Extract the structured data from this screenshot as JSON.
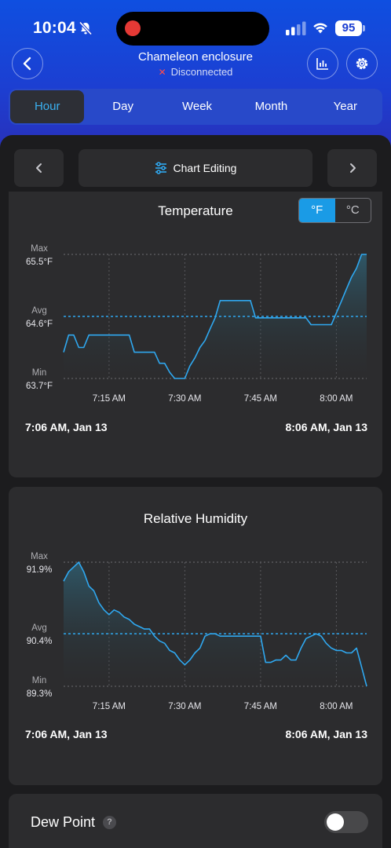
{
  "status_bar": {
    "time": "10:04",
    "battery": "95"
  },
  "header": {
    "title": "Chameleon enclosure",
    "status": "Disconnected"
  },
  "tabs": [
    {
      "label": "Hour",
      "active": true
    },
    {
      "label": "Day",
      "active": false
    },
    {
      "label": "Week",
      "active": false
    },
    {
      "label": "Month",
      "active": false
    },
    {
      "label": "Year",
      "active": false
    }
  ],
  "nav": {
    "editing_label": "Chart Editing"
  },
  "units": {
    "fahrenheit": "°F",
    "celsius": "°C",
    "selected": "°F"
  },
  "colors": {
    "accent": "#1a9be6",
    "line": "#2fa8f0",
    "hero": "#1c3fd2",
    "error": "#ff4d4d"
  },
  "chart_data": [
    {
      "type": "line",
      "title": "Temperature",
      "ylim": [
        63.7,
        65.5
      ],
      "y_labels": [
        {
          "name": "Max",
          "value": "65.5°F",
          "y": 65.5
        },
        {
          "name": "Avg",
          "value": "64.6°F",
          "y": 64.6
        },
        {
          "name": "Min",
          "value": "63.7°F",
          "y": 63.7
        }
      ],
      "x_ticks": [
        "7:15 AM",
        "7:30 AM",
        "7:45 AM",
        "8:00 AM"
      ],
      "x_tick_minutes": [
        9,
        24,
        39,
        54
      ],
      "x_range_minutes": [
        0,
        60
      ],
      "range_start": "7:06 AM,  Jan 13",
      "range_end": "8:06 AM,  Jan 13",
      "points": [
        [
          0,
          64.08
        ],
        [
          1,
          64.33
        ],
        [
          2,
          64.33
        ],
        [
          3,
          64.15
        ],
        [
          4,
          64.15
        ],
        [
          5,
          64.33
        ],
        [
          6,
          64.33
        ],
        [
          7,
          64.33
        ],
        [
          8,
          64.33
        ],
        [
          9,
          64.33
        ],
        [
          10,
          64.33
        ],
        [
          11,
          64.33
        ],
        [
          12,
          64.33
        ],
        [
          13,
          64.33
        ],
        [
          14,
          64.08
        ],
        [
          15,
          64.08
        ],
        [
          16,
          64.08
        ],
        [
          17,
          64.08
        ],
        [
          18,
          64.08
        ],
        [
          19,
          63.92
        ],
        [
          20,
          63.92
        ],
        [
          21,
          63.79
        ],
        [
          22,
          63.7
        ],
        [
          23,
          63.7
        ],
        [
          24,
          63.7
        ],
        [
          25,
          63.88
        ],
        [
          26,
          64.0
        ],
        [
          27,
          64.15
        ],
        [
          28,
          64.25
        ],
        [
          29,
          64.42
        ],
        [
          30,
          64.58
        ],
        [
          31,
          64.83
        ],
        [
          32,
          64.83
        ],
        [
          33,
          64.83
        ],
        [
          34,
          64.83
        ],
        [
          35,
          64.83
        ],
        [
          36,
          64.83
        ],
        [
          37,
          64.83
        ],
        [
          38,
          64.58
        ],
        [
          39,
          64.58
        ],
        [
          40,
          64.58
        ],
        [
          41,
          64.58
        ],
        [
          42,
          64.58
        ],
        [
          43,
          64.58
        ],
        [
          44,
          64.58
        ],
        [
          45,
          64.58
        ],
        [
          46,
          64.58
        ],
        [
          47,
          64.58
        ],
        [
          48,
          64.58
        ],
        [
          49,
          64.48
        ],
        [
          50,
          64.48
        ],
        [
          51,
          64.48
        ],
        [
          52,
          64.48
        ],
        [
          53,
          64.48
        ],
        [
          54,
          64.65
        ],
        [
          55,
          64.82
        ],
        [
          56,
          65.0
        ],
        [
          57,
          65.17
        ],
        [
          58,
          65.3
        ],
        [
          59,
          65.5
        ],
        [
          60,
          65.5
        ]
      ]
    },
    {
      "type": "line",
      "title": "Relative Humidity",
      "ylim": [
        89.3,
        91.9
      ],
      "y_labels": [
        {
          "name": "Max",
          "value": "91.9%",
          "y": 91.9
        },
        {
          "name": "Avg",
          "value": "90.4%",
          "y": 90.4
        },
        {
          "name": "Min",
          "value": "89.3%",
          "y": 89.3
        }
      ],
      "x_ticks": [
        "7:15 AM",
        "7:30 AM",
        "7:45 AM",
        "8:00 AM"
      ],
      "x_tick_minutes": [
        9,
        24,
        39,
        54
      ],
      "x_range_minutes": [
        0,
        60
      ],
      "range_start": "7:06 AM,  Jan 13",
      "range_end": "8:06 AM,  Jan 13",
      "points": [
        [
          0,
          91.5
        ],
        [
          1,
          91.7
        ],
        [
          2,
          91.8
        ],
        [
          3,
          91.9
        ],
        [
          4,
          91.7
        ],
        [
          5,
          91.4
        ],
        [
          6,
          91.3
        ],
        [
          7,
          91.05
        ],
        [
          8,
          90.9
        ],
        [
          9,
          90.8
        ],
        [
          10,
          90.9
        ],
        [
          11,
          90.85
        ],
        [
          12,
          90.75
        ],
        [
          13,
          90.7
        ],
        [
          14,
          90.6
        ],
        [
          15,
          90.55
        ],
        [
          16,
          90.5
        ],
        [
          17,
          90.5
        ],
        [
          18,
          90.35
        ],
        [
          19,
          90.25
        ],
        [
          20,
          90.2
        ],
        [
          21,
          90.05
        ],
        [
          22,
          90.0
        ],
        [
          23,
          89.85
        ],
        [
          24,
          89.75
        ],
        [
          25,
          89.85
        ],
        [
          26,
          90.0
        ],
        [
          27,
          90.1
        ],
        [
          28,
          90.35
        ],
        [
          29,
          90.4
        ],
        [
          30,
          90.4
        ],
        [
          31,
          90.35
        ],
        [
          32,
          90.35
        ],
        [
          33,
          90.35
        ],
        [
          34,
          90.35
        ],
        [
          35,
          90.35
        ],
        [
          36,
          90.35
        ],
        [
          37,
          90.35
        ],
        [
          38,
          90.35
        ],
        [
          39,
          90.35
        ],
        [
          40,
          89.8
        ],
        [
          41,
          89.8
        ],
        [
          42,
          89.85
        ],
        [
          43,
          89.85
        ],
        [
          44,
          89.95
        ],
        [
          45,
          89.85
        ],
        [
          46,
          89.85
        ],
        [
          47,
          90.1
        ],
        [
          48,
          90.3
        ],
        [
          49,
          90.35
        ],
        [
          50,
          90.4
        ],
        [
          51,
          90.35
        ],
        [
          52,
          90.2
        ],
        [
          53,
          90.1
        ],
        [
          54,
          90.05
        ],
        [
          55,
          90.05
        ],
        [
          56,
          90.0
        ],
        [
          57,
          90.0
        ],
        [
          58,
          90.1
        ],
        [
          59,
          89.7
        ],
        [
          60,
          89.3
        ]
      ]
    }
  ],
  "dew_point": {
    "label": "Dew Point",
    "help": "?",
    "enabled": false
  }
}
